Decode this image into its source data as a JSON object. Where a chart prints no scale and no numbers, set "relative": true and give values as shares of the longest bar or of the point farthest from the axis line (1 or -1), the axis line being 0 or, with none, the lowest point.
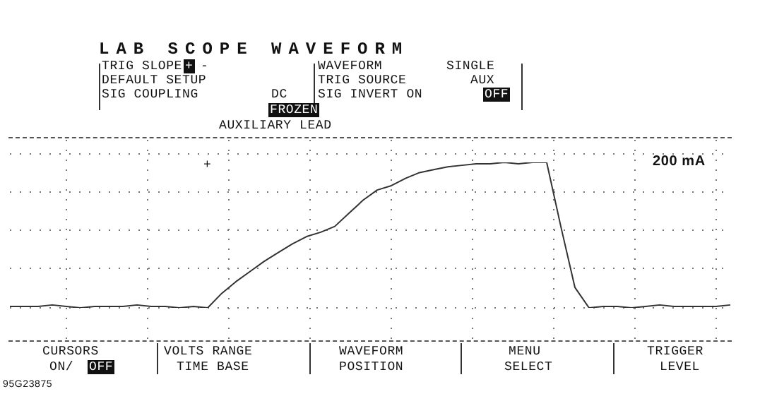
{
  "chart_data": {
    "type": "line",
    "title": "LAB SCOPE WAVEFORM",
    "relative": true,
    "grid": true,
    "legend": false,
    "marker": "none",
    "line_style": "solid",
    "categories": [
      null,
      null,
      null,
      null,
      null,
      null,
      null,
      null,
      null,
      null,
      null,
      null,
      null,
      null,
      null,
      null,
      null,
      null,
      null,
      null,
      null,
      null,
      null,
      null,
      null,
      null,
      null,
      null,
      null,
      null,
      null,
      null,
      null,
      null,
      null,
      null,
      null,
      null,
      null,
      null,
      null,
      null,
      null,
      null,
      null,
      null,
      null,
      null,
      null,
      null,
      null,
      null
    ],
    "series": [
      {
        "color": "#333333",
        "values": [
          0.01,
          0.01,
          0.01,
          0.02,
          0.01,
          0.0,
          0.01,
          0.01,
          0.01,
          0.02,
          0.01,
          0.01,
          0.0,
          0.01,
          0.0,
          0.1,
          0.18,
          0.25,
          0.32,
          0.38,
          0.44,
          0.49,
          0.52,
          0.56,
          0.65,
          0.74,
          0.81,
          0.84,
          0.89,
          0.93,
          0.95,
          0.97,
          0.98,
          0.99,
          0.99,
          1.0,
          0.99,
          1.0,
          1.0,
          0.56,
          0.14,
          0.0,
          0.01,
          0.01,
          0.0,
          0.01,
          0.02,
          0.01,
          0.01,
          0.01,
          0.01,
          0.02
        ]
      }
    ],
    "annotations": [
      "TRIG SLOPE",
      "+",
      "-",
      "DEFAULT SETUP",
      "SIG COUPLING",
      "DC",
      "WAVEFORM",
      "SINGLE",
      "TRIG SOURCE",
      "AUX",
      "SIG INVERT ON",
      "OFF",
      "FROZEN",
      "AUXILIARY LEAD",
      "200 mA",
      "CURSORS",
      "ON/",
      "OFF",
      "VOLTS RANGE",
      "TIME BASE",
      "WAVEFORM",
      "POSITION",
      "MENU",
      "SELECT",
      "TRIGGER",
      "LEVEL",
      "95G23875",
      "+"
    ]
  }
}
